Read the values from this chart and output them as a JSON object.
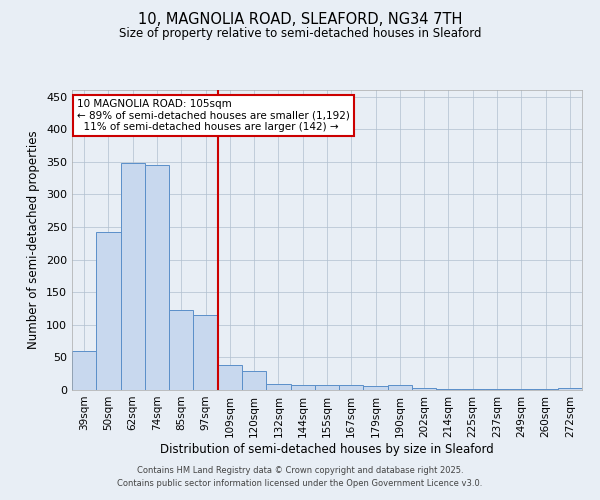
{
  "title_line1": "10, MAGNOLIA ROAD, SLEAFORD, NG34 7TH",
  "title_line2": "Size of property relative to semi-detached houses in Sleaford",
  "xlabel": "Distribution of semi-detached houses by size in Sleaford",
  "ylabel": "Number of semi-detached properties",
  "categories": [
    "39sqm",
    "50sqm",
    "62sqm",
    "74sqm",
    "85sqm",
    "97sqm",
    "109sqm",
    "120sqm",
    "132sqm",
    "144sqm",
    "155sqm",
    "167sqm",
    "179sqm",
    "190sqm",
    "202sqm",
    "214sqm",
    "225sqm",
    "237sqm",
    "249sqm",
    "260sqm",
    "272sqm"
  ],
  "values": [
    60,
    243,
    348,
    345,
    123,
    115,
    38,
    29,
    9,
    8,
    7,
    7,
    6,
    7,
    3,
    2,
    1,
    1,
    1,
    2,
    3
  ],
  "bar_color": "#c8d8ee",
  "bar_edge_color": "#5b8fc9",
  "vline_color": "#cc0000",
  "vline_index": 6,
  "annotation_title": "10 MAGNOLIA ROAD: 105sqm",
  "annotation_line1": "← 89% of semi-detached houses are smaller (1,192)",
  "annotation_line2": "11% of semi-detached houses are larger (142) →",
  "annotation_box_edgecolor": "#cc0000",
  "ylim": [
    0,
    460
  ],
  "yticks": [
    0,
    50,
    100,
    150,
    200,
    250,
    300,
    350,
    400,
    450
  ],
  "footer_line1": "Contains HM Land Registry data © Crown copyright and database right 2025.",
  "footer_line2": "Contains public sector information licensed under the Open Government Licence v3.0.",
  "bg_color": "#e8eef5",
  "plot_bg_color": "#e8eef5",
  "grid_color": "#b0bfcf"
}
